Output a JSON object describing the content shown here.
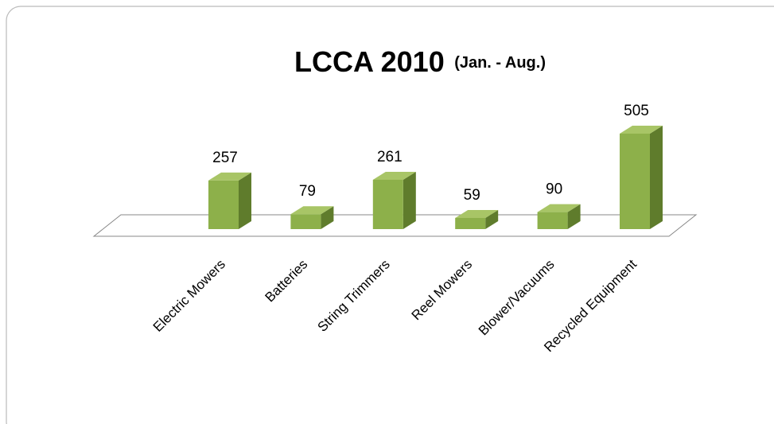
{
  "chart_data": {
    "type": "bar3d",
    "title": "LCCA 2010",
    "subtitle": "(Jan. -  Aug.)",
    "categories": [
      "Electric Mowers",
      "Batteries",
      "String Trimmers",
      "Reel Mowers",
      "Blower/Vacuums",
      "Recycled Equipment"
    ],
    "values": [
      257,
      79,
      261,
      59,
      90,
      505
    ],
    "color": "#8db04a"
  }
}
